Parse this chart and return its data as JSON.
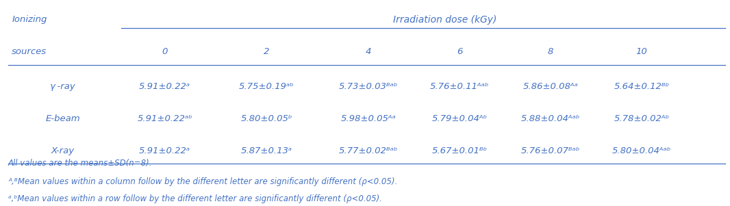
{
  "title_left": "Ionizing",
  "title_left2": "sources",
  "title_center": "Irradiation dose (kGy)",
  "col_headers": [
    "0",
    "2",
    "4",
    "6",
    "8",
    "10"
  ],
  "row_labels": [
    "γ -ray",
    "E-beam",
    "X-ray"
  ],
  "table_data": [
    [
      "5.91±0.22ᵃ",
      "5.75±0.19ᵃᵇ",
      "5.73±0.03ᴮᵃᵇ",
      "5.76±0.11ᴬᵃᵇ",
      "5.86±0.08ᴬᵃ",
      "5.64±0.12ᴮᵇ"
    ],
    [
      "5.91±0.22ᵃᵇ",
      "5.80±0.05ᵇ",
      "5.98±0.05ᴬᵃ",
      "5.79±0.04ᴬᵇ",
      "5.88±0.04ᴬᵃᵇ",
      "5.78±0.02ᴬᵇ"
    ],
    [
      "5.91±0.22ᵃ",
      "5.87±0.13ᵃ",
      "5.77±0.02ᴮᵃᵇ",
      "5.67±0.01ᴮᵇ",
      "5.76±0.07ᴮᵃᵇ",
      "5.80±0.04ᴬᵃᵇ"
    ]
  ],
  "footnote1": "All values are the means±SD(n=8).",
  "footnote2": "ᴬ,ᴮMean values within a column follow by the different letter are significantly different (ρ<0.05).",
  "footnote3": "ᵃ,ᵇMean values within a row follow by the different letter are significantly different (ρ<0.05).",
  "text_color": "#4472C4",
  "line_color": "#4472C4",
  "font_size": 9.5,
  "footnote_size": 8.5
}
